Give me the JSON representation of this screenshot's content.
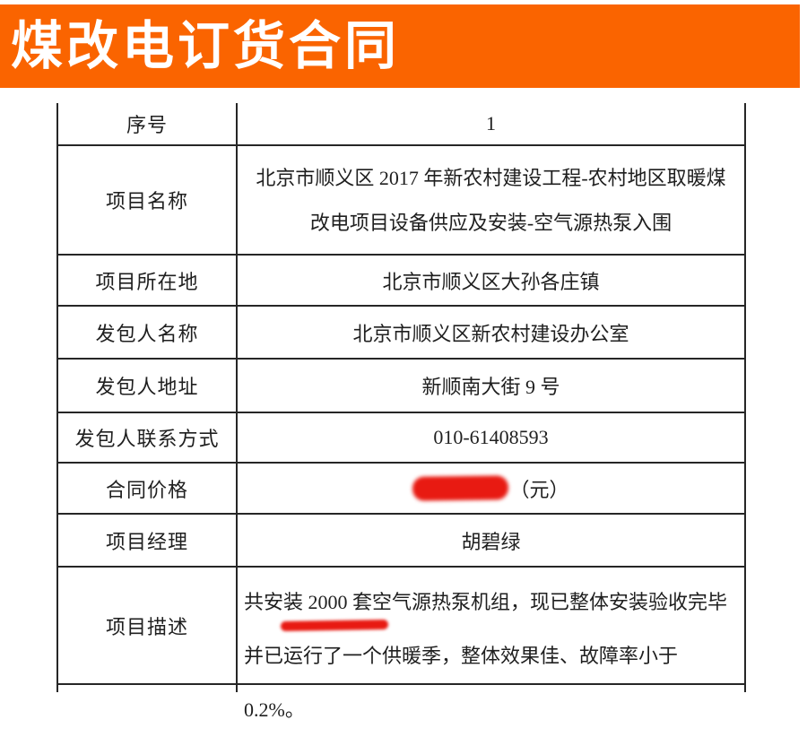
{
  "header": {
    "title": "煤改电订货合同"
  },
  "colors": {
    "banner_orange": "#fa6400",
    "redaction_red": "#e81a12",
    "table_border": "#262626",
    "title_text": "#ffffff",
    "body_text": "#1f1f1f"
  },
  "table": {
    "rows": [
      {
        "label": "序号",
        "value": "1"
      },
      {
        "label": "项目名称",
        "value": "北京市顺义区 2017 年新农村建设工程-农村地区取暖煤改电项目设备供应及安装-空气源热泵入围"
      },
      {
        "label": "项目所在地",
        "value": "北京市顺义区大孙各庄镇"
      },
      {
        "label": "发包人名称",
        "value": "北京市顺义区新农村建设办公室"
      },
      {
        "label": "发包人地址",
        "value": "新顺南大街 9 号"
      },
      {
        "label": "发包人联系方式",
        "value": "010-61408593"
      },
      {
        "label": "合同价格",
        "value": "（元）",
        "redacted": true
      },
      {
        "label": "项目经理",
        "value": "胡碧绿"
      },
      {
        "label": "项目描述",
        "value": "共安装 2000 套空气源热泵机组，现已整体安装验收完毕并已运行了一个供暖季，整体效果佳、故障率小于 0.2%。",
        "red_underline_under": "2000 套空"
      }
    ]
  }
}
